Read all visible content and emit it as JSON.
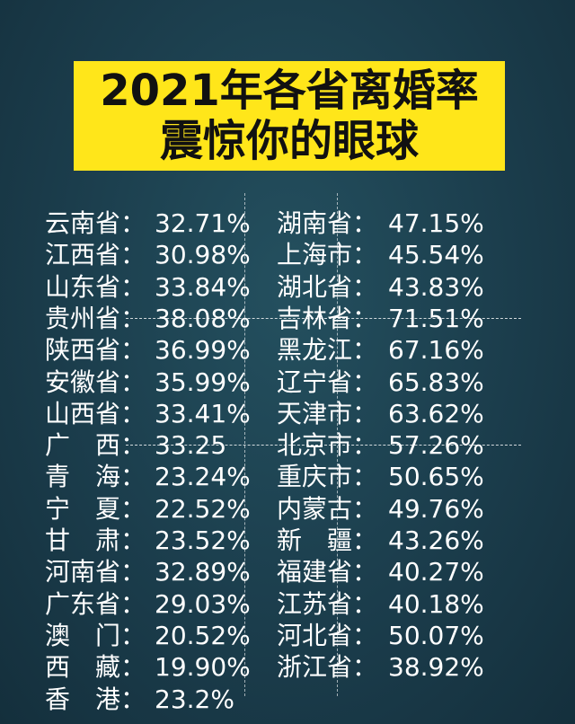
{
  "title": {
    "line1": "2021年各省离婚率",
    "line2": "震惊你的眼球"
  },
  "left": [
    {
      "name": "云南省：",
      "rate": "32.71%"
    },
    {
      "name": "江西省：",
      "rate": "30.98%"
    },
    {
      "name": "山东省：",
      "rate": "33.84%"
    },
    {
      "name": "贵州省：",
      "rate": "38.08%"
    },
    {
      "name": "陕西省：",
      "rate": "36.99%"
    },
    {
      "name": "安徽省：",
      "rate": "35.99%"
    },
    {
      "name": "山西省：",
      "rate": "33.41%"
    },
    {
      "name": "广　西：",
      "rate": "33.25"
    },
    {
      "name": "青　海：",
      "rate": "23.24%"
    },
    {
      "name": "宁　夏：",
      "rate": "22.52%"
    },
    {
      "name": "甘　肃：",
      "rate": "23.52%"
    },
    {
      "name": "河南省：",
      "rate": "32.89%"
    },
    {
      "name": "广东省：",
      "rate": "29.03%"
    },
    {
      "name": "澳　门：",
      "rate": "20.52%"
    },
    {
      "name": "西　藏：",
      "rate": "19.90%"
    },
    {
      "name": "香　港：",
      "rate": "23.2%"
    }
  ],
  "right": [
    {
      "name": "湖南省：",
      "rate": "47.15%"
    },
    {
      "name": "上海市：",
      "rate": "45.54%"
    },
    {
      "name": "湖北省：",
      "rate": "43.83%"
    },
    {
      "name": "吉林省：",
      "rate": "71.51%"
    },
    {
      "name": "黑龙江：",
      "rate": "67.16%"
    },
    {
      "name": "辽宁省：",
      "rate": "65.83%"
    },
    {
      "name": "天津市：",
      "rate": "63.62%"
    },
    {
      "name": "北京市：",
      "rate": "57.26%"
    },
    {
      "name": "重庆市：",
      "rate": "50.65%"
    },
    {
      "name": "内蒙古：",
      "rate": "49.76%"
    },
    {
      "name": "新　疆：",
      "rate": "43.26%"
    },
    {
      "name": "福建省：",
      "rate": "40.27%"
    },
    {
      "name": "江苏省：",
      "rate": "40.18%"
    },
    {
      "name": "河北省：",
      "rate": "50.07%"
    },
    {
      "name": "浙江省：",
      "rate": "38.92%"
    }
  ]
}
